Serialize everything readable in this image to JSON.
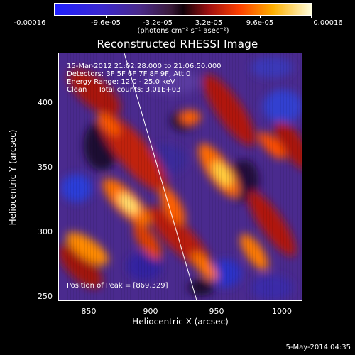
{
  "colorbar": {
    "tick_labels": [
      "-0.00016",
      "-9.6e-05",
      "-3.2e-05",
      "3.2e-05",
      "9.6e-05",
      "0.00016"
    ],
    "units": "(photons cm⁻² s⁻¹ asec⁻²)"
  },
  "title": "Reconstructed RHESSI Image",
  "info": {
    "time_range": "15-Mar-2012 21:02:28.000 to 21:06:50.000",
    "detectors": "Detectors: 3F 5F 6F 7F 8F 9F, Att 0",
    "energy": "Energy Range: 12.0 - 25.0 keV",
    "method": "Clean     Total counts: 3.01E+03"
  },
  "peak": "Position of Peak = [869,329]",
  "axes": {
    "x_label": "Heliocentric X (arcsec)",
    "y_label": "Heliocentric Y (arcsec)",
    "x_ticks": [
      "850",
      "900",
      "950",
      "1000"
    ],
    "y_ticks": [
      "400",
      "350",
      "300",
      "250"
    ]
  },
  "timestamp": "5-May-2014 04:35"
}
